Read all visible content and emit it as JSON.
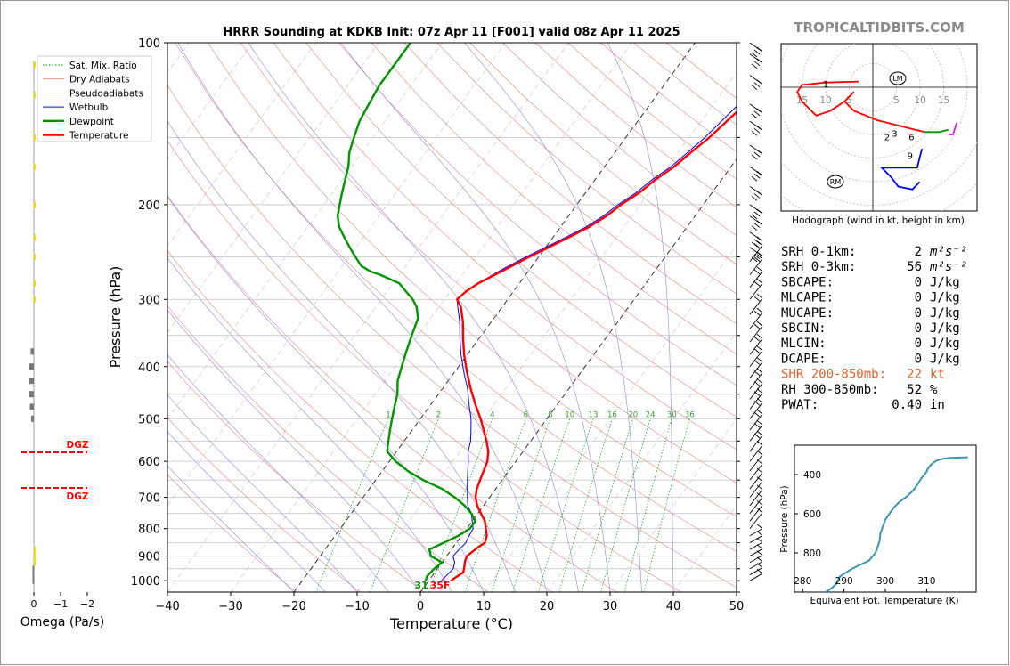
{
  "chart_data": [
    {
      "type": "line",
      "title": "HRRR Sounding at KDKB Init: 07z Apr 11 [F001] valid 08z Apr 11 2025",
      "xlabel": "Temperature (°C)",
      "ylabel": "Pressure (hPa)",
      "xlim": [
        -40,
        50
      ],
      "ylim": [
        1050,
        100
      ],
      "yscale": "log",
      "xticks": [
        "−40",
        "−30",
        "−20",
        "−10",
        "0",
        "10",
        "20",
        "30",
        "40",
        "50"
      ],
      "yticks": [
        "100",
        "200",
        "300",
        "400",
        "500",
        "600",
        "700",
        "800",
        "900",
        "1000"
      ],
      "legend": [
        "Sat. Mix. Ratio",
        "Dry Adiabats",
        "Pseudoadiabats",
        "Wetbulb",
        "Dewpoint",
        "Temperature"
      ],
      "legend_position": "top-left",
      "mixing_ratio_labels": [
        "1",
        "2",
        "4",
        "6",
        "8",
        "10",
        "13",
        "16",
        "20",
        "24",
        "30",
        "36"
      ],
      "surface_labels": {
        "dewpoint": "31",
        "temperature": "35F"
      },
      "series": [
        {
          "name": "Temperature",
          "color": "#ff0000",
          "points": [
            [
              3.5,
              1000
            ],
            [
              4.5,
              965
            ],
            [
              4.2,
              950
            ],
            [
              3.5,
              920
            ],
            [
              3.2,
              900
            ],
            [
              4,
              865
            ],
            [
              4.5,
              850
            ],
            [
              4,
              825
            ],
            [
              3,
              800
            ],
            [
              2,
              775
            ],
            [
              0.5,
              750
            ],
            [
              -1,
              725
            ],
            [
              -2.2,
              700
            ],
            [
              -3,
              675
            ],
            [
              -3.5,
              650
            ],
            [
              -4,
              625
            ],
            [
              -4.5,
              600
            ],
            [
              -5.5,
              575
            ],
            [
              -7,
              550
            ],
            [
              -8.7,
              525
            ],
            [
              -10.5,
              500
            ],
            [
              -13,
              470
            ],
            [
              -15.5,
              440
            ],
            [
              -18,
              410
            ],
            [
              -20.5,
              380
            ],
            [
              -22.5,
              355
            ],
            [
              -24.5,
              330
            ],
            [
              -26.5,
              310
            ],
            [
              -28,
              300
            ],
            [
              -27.5,
              290
            ],
            [
              -26.5,
              280
            ],
            [
              -24,
              265
            ],
            [
              -21.5,
              250
            ],
            [
              -19.5,
              240
            ],
            [
              -17.5,
              230
            ],
            [
              -15.5,
              220
            ],
            [
              -14,
              210
            ],
            [
              -13,
              200
            ],
            [
              -11.5,
              190
            ],
            [
              -10.5,
              180
            ],
            [
              -9,
              170
            ],
            [
              -8,
              160
            ],
            [
              -6.8,
              150
            ],
            [
              -5,
              130
            ],
            [
              -4,
              125
            ],
            [
              -3,
              120
            ],
            [
              -1.3,
              110
            ],
            [
              0,
              105
            ],
            [
              1,
              100
            ]
          ]
        },
        {
          "name": "Dewpoint",
          "color": "#009600",
          "points": [
            [
              -0.5,
              1000
            ],
            [
              -0.8,
              980
            ],
            [
              -0.5,
              950
            ],
            [
              0,
              925
            ],
            [
              -2.5,
              900
            ],
            [
              -3.5,
              875
            ],
            [
              -2,
              850
            ],
            [
              -0.5,
              825
            ],
            [
              0.5,
              800
            ],
            [
              0.5,
              775
            ],
            [
              -1,
              750
            ],
            [
              -3,
              725
            ],
            [
              -5.5,
              700
            ],
            [
              -8.5,
              675
            ],
            [
              -12.5,
              650
            ],
            [
              -16,
              625
            ],
            [
              -19,
              600
            ],
            [
              -21.5,
              575
            ],
            [
              -22.5,
              550
            ],
            [
              -23.5,
              525
            ],
            [
              -24.5,
              500
            ],
            [
              -25.5,
              475
            ],
            [
              -26.5,
              450
            ],
            [
              -28,
              425
            ],
            [
              -29,
              400
            ],
            [
              -30,
              375
            ],
            [
              -31,
              350
            ],
            [
              -32,
              325
            ],
            [
              -33.5,
              310
            ],
            [
              -35,
              300
            ],
            [
              -37,
              290
            ],
            [
              -39,
              280
            ],
            [
              -41,
              275
            ],
            [
              -43,
              270
            ],
            [
              -45,
              266
            ],
            [
              -47,
              260
            ],
            [
              -49,
              250
            ],
            [
              -51,
              240
            ],
            [
              -53,
              230
            ],
            [
              -55,
              220
            ],
            [
              -56.5,
              210
            ],
            [
              -57.5,
              200
            ],
            [
              -58.5,
              190
            ],
            [
              -59.5,
              180
            ],
            [
              -60.5,
              170
            ],
            [
              -62,
              160
            ],
            [
              -63,
              150
            ],
            [
              -64,
              140
            ],
            [
              -64.5,
              130
            ],
            [
              -65,
              120
            ],
            [
              -65,
              110
            ],
            [
              -65,
              100
            ]
          ]
        },
        {
          "name": "Wetbulb",
          "color": "#0000ff",
          "points": [
            [
              2,
              1000
            ],
            [
              2.3,
              970
            ],
            [
              2.5,
              950
            ],
            [
              2,
              925
            ],
            [
              1,
              900
            ],
            [
              1.2,
              875
            ],
            [
              1.5,
              850
            ],
            [
              1.2,
              825
            ],
            [
              1,
              800
            ],
            [
              0,
              775
            ],
            [
              -1,
              750
            ],
            [
              -2.5,
              725
            ],
            [
              -3.5,
              700
            ],
            [
              -4.5,
              675
            ],
            [
              -5.5,
              650
            ],
            [
              -6.5,
              625
            ],
            [
              -7.5,
              600
            ],
            [
              -8.7,
              575
            ],
            [
              -9.5,
              550
            ],
            [
              -10.7,
              525
            ],
            [
              -12,
              500
            ],
            [
              -14,
              470
            ],
            [
              -16,
              440
            ],
            [
              -18.5,
              410
            ],
            [
              -21,
              380
            ],
            [
              -23,
              355
            ],
            [
              -25,
              330
            ],
            [
              -27,
              310
            ],
            [
              -28,
              300
            ],
            [
              -27.5,
              290
            ],
            [
              -26.5,
              280
            ],
            [
              -24.5,
              265
            ],
            [
              -22,
              250
            ],
            [
              -20,
              240
            ],
            [
              -18,
              230
            ],
            [
              -16,
              220
            ],
            [
              -14.5,
              210
            ],
            [
              -13.5,
              200
            ],
            [
              -12,
              190
            ],
            [
              -11,
              180
            ],
            [
              -9.5,
              170
            ],
            [
              -8.5,
              160
            ],
            [
              -7.5,
              150
            ],
            [
              -6,
              130
            ],
            [
              -5,
              125
            ],
            [
              -4,
              120
            ],
            [
              -2,
              110
            ],
            [
              -0.8,
              105
            ],
            [
              0.3,
              100
            ]
          ]
        }
      ]
    },
    {
      "type": "line",
      "title": "Hodograph (wind in kt, height in km)",
      "ring_labels": [
        "15",
        "10",
        "5",
        "5",
        "10",
        "15"
      ],
      "height_labels": [
        "1",
        "2",
        "3",
        "6",
        "9"
      ],
      "markers": [
        "LM",
        "RM"
      ]
    },
    {
      "type": "line",
      "title": "",
      "xlabel": "Equivalent Pot. Temperature (K)",
      "ylabel": "Pressure (hPa)",
      "xlim": [
        278,
        322
      ],
      "ylim": [
        1000,
        250
      ],
      "xticks": [
        "280",
        "290",
        "300",
        "310"
      ],
      "yticks": [
        "400",
        "600",
        "800"
      ],
      "series": [
        {
          "name": "",
          "color": "#3b96b3",
          "points": [
            [
              285.5,
              1000
            ],
            [
              287,
              980
            ],
            [
              288,
              960
            ],
            [
              289,
              920
            ],
            [
              292,
              880
            ],
            [
              296,
              840
            ],
            [
              297.6,
              800
            ],
            [
              298,
              780
            ],
            [
              298.3,
              760
            ],
            [
              298.6,
              740
            ],
            [
              298.8,
              700
            ],
            [
              299.3,
              670
            ],
            [
              300,
              630
            ],
            [
              301,
              600
            ],
            [
              302,
              570
            ],
            [
              303.4,
              540
            ],
            [
              305.3,
              510
            ],
            [
              306.8,
              480
            ],
            [
              307.8,
              450
            ],
            [
              308.7,
              420
            ],
            [
              309.5,
              400
            ],
            [
              310,
              385
            ],
            [
              310.3,
              370
            ],
            [
              311,
              350
            ],
            [
              312.3,
              330
            ],
            [
              313.8,
              320
            ],
            [
              315.7,
              315
            ],
            [
              318,
              313
            ],
            [
              320,
              312
            ]
          ]
        }
      ]
    },
    {
      "type": "bar",
      "xlabel": "Omega (Pa/s)",
      "xticks": [
        "0",
        "−1",
        "−2"
      ],
      "dgz_label": "DGZ"
    }
  ],
  "header": {
    "site": "TROPICALTIDBITS.COM"
  },
  "params": [
    {
      "label": "SRH 0-1km:",
      "value": "2",
      "unit": "m²s⁻²",
      "color": "#000000"
    },
    {
      "label": "SRH 0-3km:",
      "value": "56",
      "unit": "m²s⁻²",
      "color": "#000000"
    },
    {
      "label": "SBCAPE:",
      "value": "0",
      "unit": "J/kg",
      "color": "#000000"
    },
    {
      "label": "MLCAPE:",
      "value": "0",
      "unit": "J/kg",
      "color": "#000000"
    },
    {
      "label": "MUCAPE:",
      "value": "0",
      "unit": "J/kg",
      "color": "#000000"
    },
    {
      "label": "SBCIN:",
      "value": "0",
      "unit": "J/kg",
      "color": "#000000"
    },
    {
      "label": "MLCIN:",
      "value": "0",
      "unit": "J/kg",
      "color": "#000000"
    },
    {
      "label": "DCAPE:",
      "value": "0",
      "unit": "J/kg",
      "color": "#000000"
    },
    {
      "label": "SHR 200-850mb:",
      "value": "22",
      "unit": "kt",
      "color": "#e0602b"
    },
    {
      "label": "RH 300-850mb:",
      "value": "52",
      "unit": "%",
      "color": "#000000"
    },
    {
      "label": "PWAT:",
      "value": "0.40",
      "unit": "in",
      "color": "#000000"
    }
  ]
}
